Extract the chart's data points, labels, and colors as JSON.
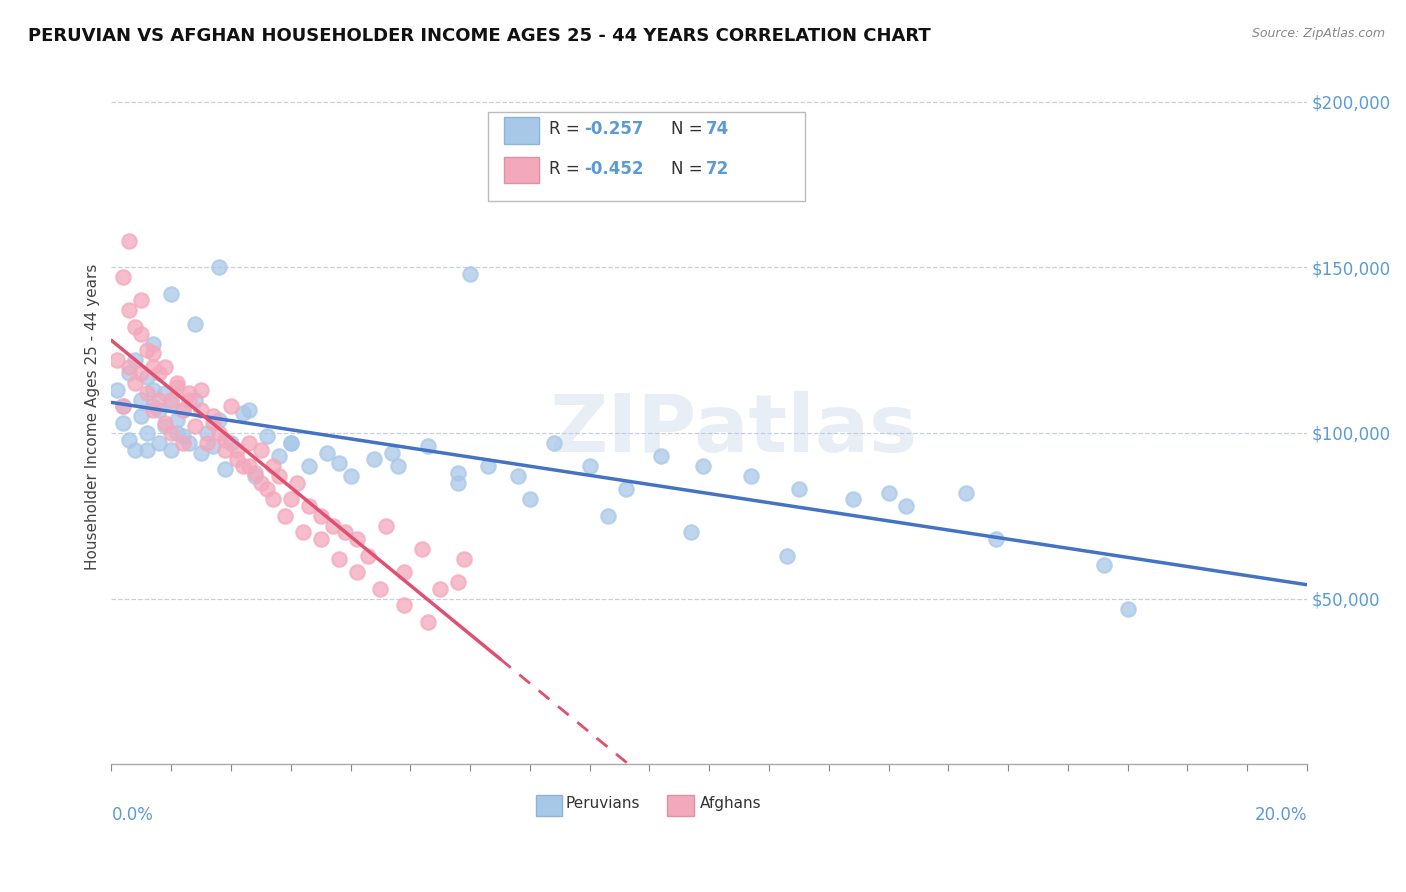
{
  "title": "PERUVIAN VS AFGHAN HOUSEHOLDER INCOME AGES 25 - 44 YEARS CORRELATION CHART",
  "source": "Source: ZipAtlas.com",
  "ylabel": "Householder Income Ages 25 - 44 years",
  "xmin": 0.0,
  "xmax": 0.2,
  "ymin": 0,
  "ymax": 210000,
  "yticks": [
    0,
    50000,
    100000,
    150000,
    200000
  ],
  "ytick_labels": [
    "",
    "$50,000",
    "$100,000",
    "$150,000",
    "$200,000"
  ],
  "peruvian_dot_color": "#a8c8e8",
  "afghan_dot_color": "#f4a8bc",
  "peruvian_line_color": "#4472c4",
  "afghan_line_color": "#e05070",
  "tick_color": "#5b9bd5",
  "legend_r1": "-0.257",
  "legend_n1": "74",
  "legend_r2": "-0.452",
  "legend_n2": "72",
  "watermark": "ZIPatlas",
  "grid_color": "#c8d0e0",
  "peruvian_x": [
    0.001,
    0.002,
    0.002,
    0.003,
    0.003,
    0.004,
    0.004,
    0.005,
    0.005,
    0.006,
    0.006,
    0.006,
    0.007,
    0.007,
    0.008,
    0.008,
    0.009,
    0.009,
    0.01,
    0.01,
    0.011,
    0.011,
    0.012,
    0.012,
    0.013,
    0.014,
    0.015,
    0.016,
    0.017,
    0.018,
    0.019,
    0.02,
    0.022,
    0.024,
    0.026,
    0.028,
    0.03,
    0.033,
    0.036,
    0.04,
    0.044,
    0.048,
    0.053,
    0.058,
    0.063,
    0.068,
    0.074,
    0.08,
    0.086,
    0.092,
    0.099,
    0.107,
    0.115,
    0.124,
    0.133,
    0.143,
    0.007,
    0.01,
    0.014,
    0.018,
    0.023,
    0.03,
    0.038,
    0.047,
    0.058,
    0.07,
    0.083,
    0.097,
    0.113,
    0.13,
    0.148,
    0.166,
    0.06,
    0.17
  ],
  "peruvian_y": [
    113000,
    108000,
    103000,
    118000,
    98000,
    122000,
    95000,
    110000,
    105000,
    117000,
    100000,
    95000,
    108000,
    113000,
    97000,
    107000,
    102000,
    112000,
    109000,
    95000,
    104000,
    100000,
    99000,
    107000,
    97000,
    110000,
    94000,
    100000,
    96000,
    104000,
    89000,
    97000,
    106000,
    87000,
    99000,
    93000,
    97000,
    90000,
    94000,
    87000,
    92000,
    90000,
    96000,
    85000,
    90000,
    87000,
    97000,
    90000,
    83000,
    93000,
    90000,
    87000,
    83000,
    80000,
    78000,
    82000,
    127000,
    142000,
    133000,
    150000,
    107000,
    97000,
    91000,
    94000,
    88000,
    80000,
    75000,
    70000,
    63000,
    82000,
    68000,
    60000,
    148000,
    47000
  ],
  "afghan_x": [
    0.001,
    0.002,
    0.002,
    0.003,
    0.003,
    0.004,
    0.004,
    0.005,
    0.005,
    0.006,
    0.006,
    0.007,
    0.007,
    0.008,
    0.008,
    0.009,
    0.01,
    0.01,
    0.011,
    0.012,
    0.012,
    0.013,
    0.014,
    0.015,
    0.016,
    0.017,
    0.018,
    0.019,
    0.02,
    0.021,
    0.022,
    0.023,
    0.024,
    0.025,
    0.026,
    0.027,
    0.028,
    0.03,
    0.031,
    0.033,
    0.035,
    0.037,
    0.039,
    0.041,
    0.043,
    0.046,
    0.049,
    0.052,
    0.055,
    0.059,
    0.003,
    0.005,
    0.007,
    0.009,
    0.011,
    0.013,
    0.015,
    0.017,
    0.019,
    0.021,
    0.023,
    0.025,
    0.027,
    0.029,
    0.032,
    0.035,
    0.038,
    0.041,
    0.045,
    0.049,
    0.053,
    0.058
  ],
  "afghan_y": [
    122000,
    147000,
    108000,
    158000,
    120000,
    132000,
    115000,
    140000,
    118000,
    125000,
    112000,
    120000,
    107000,
    118000,
    110000,
    103000,
    110000,
    100000,
    115000,
    107000,
    97000,
    112000,
    102000,
    113000,
    97000,
    105000,
    100000,
    95000,
    108000,
    92000,
    90000,
    97000,
    88000,
    95000,
    83000,
    90000,
    87000,
    80000,
    85000,
    78000,
    75000,
    72000,
    70000,
    68000,
    63000,
    72000,
    58000,
    65000,
    53000,
    62000,
    137000,
    130000,
    124000,
    120000,
    114000,
    110000,
    107000,
    103000,
    98000,
    95000,
    90000,
    85000,
    80000,
    75000,
    70000,
    68000,
    62000,
    58000,
    53000,
    48000,
    43000,
    55000
  ]
}
